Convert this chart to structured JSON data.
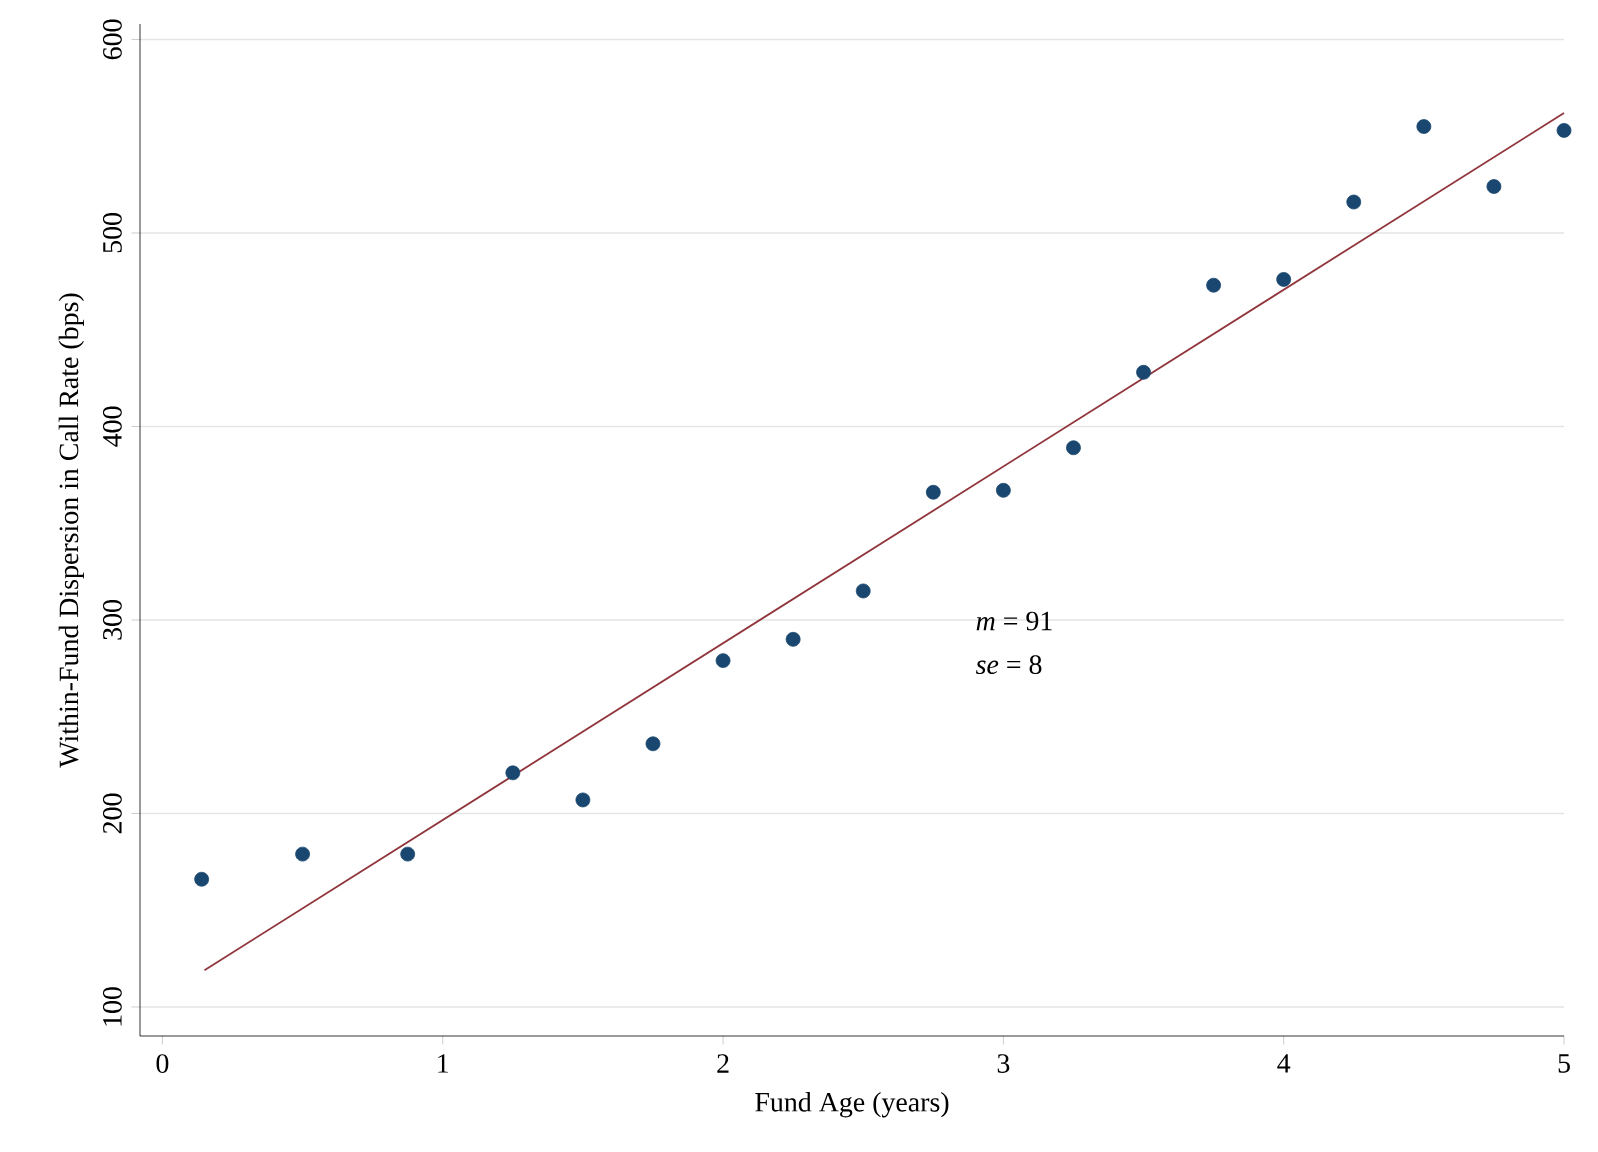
{
  "chart_data": {
    "type": "scatter",
    "xlabel": "Fund Age (years)",
    "ylabel": "Within-Fund Dispersion in Call Rate (bps)",
    "annotations": [
      "*m* = 91",
      "*se* =  8"
    ],
    "series": [
      {
        "color": "#1a476f",
        "marker": "circle",
        "x": [
          0.14,
          0.5,
          0.875,
          1.25,
          1.5,
          1.75,
          2.0,
          2.25,
          2.5,
          2.75,
          3.0,
          3.25,
          3.5,
          3.75,
          4.0,
          4.25,
          4.5,
          4.75,
          5.0
        ],
        "values": [
          166,
          179,
          179,
          221,
          207,
          236,
          279,
          290,
          315,
          366,
          367,
          389,
          428,
          473,
          476,
          516,
          555,
          524,
          553
        ]
      },
      {
        "type": "line",
        "color": "#90353b",
        "marker": "none",
        "x": [
          0.15,
          5.0
        ],
        "values": [
          119,
          562
        ]
      }
    ],
    "xlim": [
      -0.08,
      5
    ],
    "ylim": [
      85,
      608
    ],
    "xticks": [
      0,
      1,
      2,
      3,
      4,
      5
    ],
    "yticks": [
      100,
      200,
      300,
      400,
      500,
      600
    ],
    "grid": "y"
  }
}
